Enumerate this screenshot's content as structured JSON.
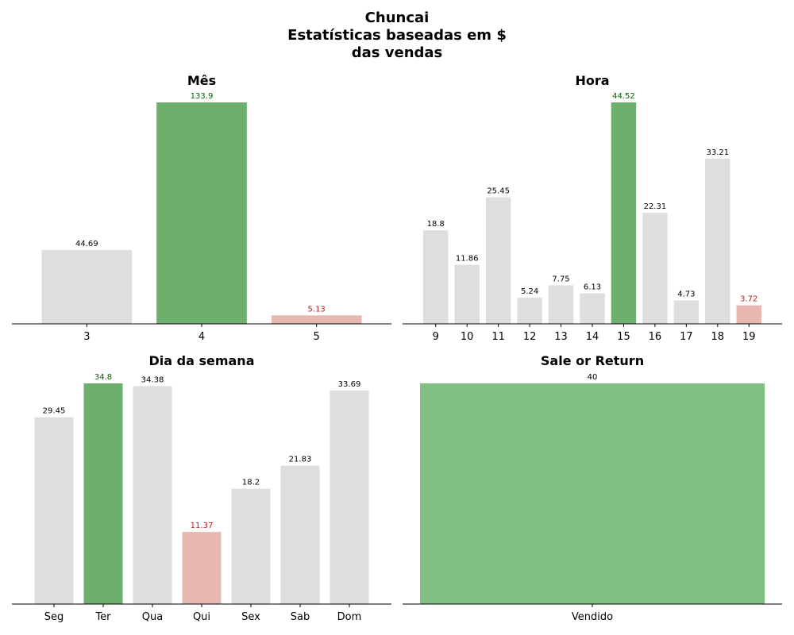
{
  "suptitle": {
    "line1": "Chuncai",
    "line2": "Estatísticas baseadas em $",
    "line3": "das vendas"
  },
  "colors": {
    "neutral": "#dedede",
    "max": "#6daf6d",
    "min": "#e7b8b0",
    "single": "#80c080",
    "max_label": "#006400",
    "min_label": "#b22222",
    "label": "#000000"
  },
  "chart_data": [
    {
      "type": "bar",
      "title": "Mês",
      "categories": [
        "3",
        "4",
        "5"
      ],
      "values": [
        44.69,
        133.9,
        5.13
      ],
      "ylim": [
        0,
        133.9
      ],
      "highlight": true
    },
    {
      "type": "bar",
      "title": "Hora",
      "categories": [
        "9",
        "10",
        "11",
        "12",
        "13",
        "14",
        "15",
        "16",
        "17",
        "18",
        "19"
      ],
      "values": [
        18.8,
        11.86,
        25.45,
        5.24,
        7.75,
        6.13,
        44.52,
        22.31,
        4.73,
        33.21,
        3.72
      ],
      "ylim": [
        0,
        44.52
      ],
      "highlight": true
    },
    {
      "type": "bar",
      "title": "Dia da semana",
      "categories": [
        "Seg",
        "Ter",
        "Qua",
        "Qui",
        "Sex",
        "Sab",
        "Dom"
      ],
      "values": [
        29.45,
        34.8,
        34.38,
        11.37,
        18.2,
        21.83,
        33.69
      ],
      "ylim": [
        0,
        34.8
      ],
      "highlight": true
    },
    {
      "type": "bar",
      "title": "Sale or Return",
      "categories": [
        "Vendido"
      ],
      "values": [
        40
      ],
      "ylim": [
        0,
        40
      ],
      "highlight": false
    }
  ]
}
